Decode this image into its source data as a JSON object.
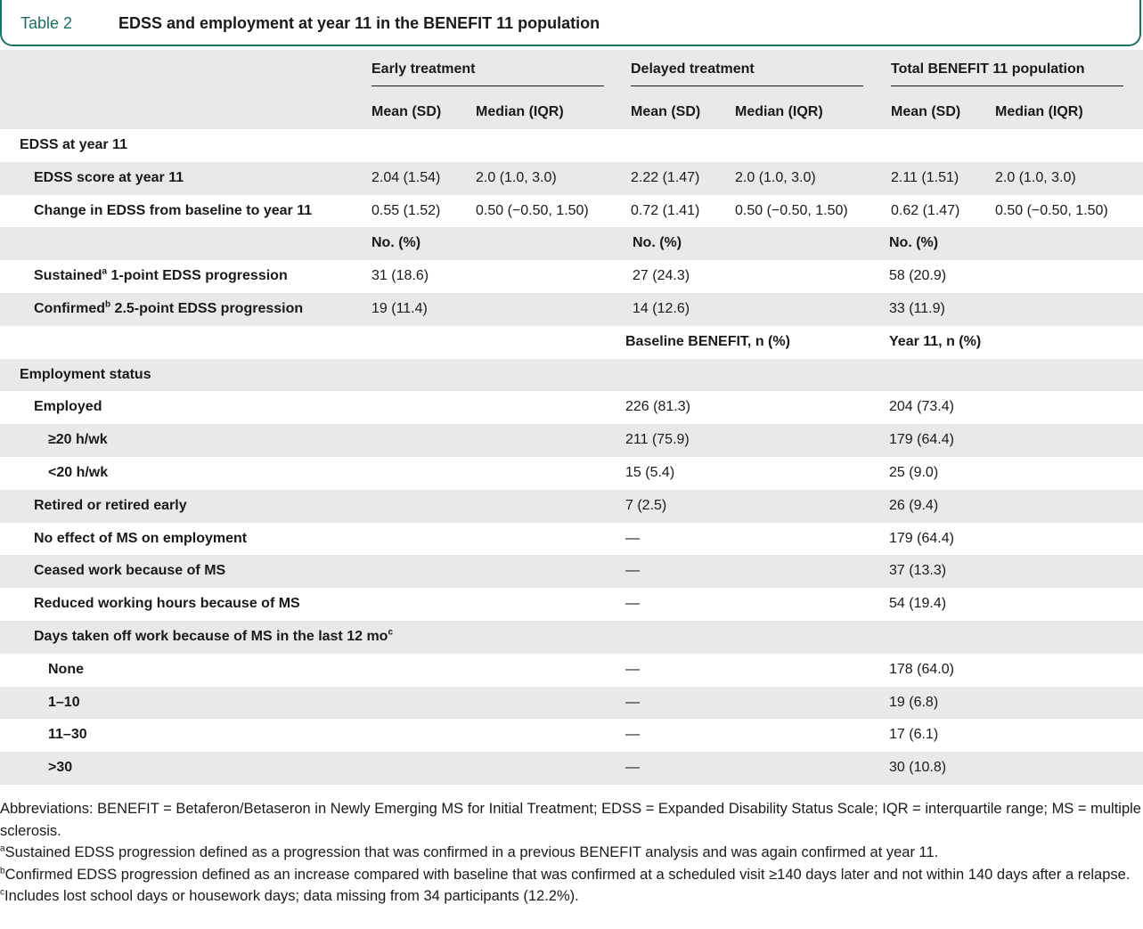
{
  "caption": {
    "label": "Table 2",
    "title": "EDSS and employment at year 11 in the BENEFIT 11 population"
  },
  "header": {
    "groups": [
      "Early treatment",
      "Delayed treatment",
      "Total BENEFIT 11 population"
    ],
    "sub": [
      "Mean (SD)",
      "Median (IQR)",
      "Mean (SD)",
      "Median (IQR)",
      "Mean (SD)",
      "Median (IQR)"
    ]
  },
  "rows": {
    "edss_section": "EDSS at year 11",
    "edss_score": {
      "label": "EDSS score at year 11",
      "values": [
        "2.04 (1.54)",
        "2.0 (1.0, 3.0)",
        "2.22 (1.47)",
        "2.0 (1.0, 3.0)",
        "2.11 (1.51)",
        "2.0 (1.0, 3.0)"
      ]
    },
    "edss_change": {
      "label": "Change in EDSS from baseline to year 11",
      "values": [
        "0.55 (1.52)",
        "0.50 (−0.50, 1.50)",
        "0.72 (1.41)",
        "0.50 (−0.50, 1.50)",
        "0.62 (1.47)",
        "0.50 (−0.50, 1.50)"
      ]
    },
    "no_pct_header": [
      "No. (%)",
      "No. (%)",
      "No. (%)"
    ],
    "sustained": {
      "label_pre": "Sustained",
      "sup": "a",
      "label_post": " 1-point EDSS progression",
      "values": [
        "31 (18.6)",
        "27 (24.3)",
        "58 (20.9)"
      ]
    },
    "confirmed": {
      "label_pre": "Confirmed",
      "sup": "b",
      "label_post": " 2.5-point EDSS progression",
      "values": [
        "19 (11.4)",
        "14 (12.6)",
        "33 (11.9)"
      ]
    },
    "emp_header": [
      "Baseline BENEFIT, n (%)",
      "Year 11, n (%)"
    ],
    "emp_section": "Employment status",
    "employed": {
      "label": "Employed",
      "values": [
        "226 (81.3)",
        "204 (73.4)"
      ]
    },
    "ge20": {
      "label": "≥20 h/wk",
      "values": [
        "211 (75.9)",
        "179 (64.4)"
      ]
    },
    "lt20": {
      "label": "<20 h/wk",
      "values": [
        "15 (5.4)",
        "25 (9.0)"
      ]
    },
    "retired": {
      "label": "Retired or retired early",
      "values": [
        "7 (2.5)",
        "26 (9.4)"
      ]
    },
    "noeffect": {
      "label": "No effect of MS on employment",
      "values": [
        "—",
        "179 (64.4)"
      ]
    },
    "ceased": {
      "label": "Ceased work because of MS",
      "values": [
        "—",
        "37 (13.3)"
      ]
    },
    "reduced": {
      "label": "Reduced working hours because of MS",
      "values": [
        "—",
        "54 (19.4)"
      ]
    },
    "days": {
      "label_pre": "Days taken off work because of MS in the last 12 mo",
      "sup": "c"
    },
    "none": {
      "label": "None",
      "values": [
        "—",
        "178 (64.0)"
      ]
    },
    "d1_10": {
      "label": "1–10",
      "values": [
        "—",
        "19 (6.8)"
      ]
    },
    "d11_30": {
      "label": "11–30",
      "values": [
        "—",
        "17 (6.1)"
      ]
    },
    "gt30": {
      "label": ">30",
      "values": [
        "—",
        "30 (10.8)"
      ]
    }
  },
  "footnotes": {
    "abbr": "Abbreviations: BENEFIT = Betaferon/Betaseron in Newly Emerging MS for Initial Treatment; EDSS = Expanded Disability Status Scale; IQR = interquartile range; MS = multiple sclerosis.",
    "a_mark": "a",
    "a": "Sustained EDSS progression defined as a progression that was confirmed in a previous BENEFIT analysis and was again confirmed at year 11.",
    "b_mark": "b",
    "b": "Confirmed EDSS progression defined as an increase compared with baseline that was confirmed at a scheduled visit ≥140 days later and not within 140 days after a relapse.",
    "c_mark": "c",
    "c": "Includes lost school days or housework days; data missing from 34 participants (12.2%)."
  }
}
